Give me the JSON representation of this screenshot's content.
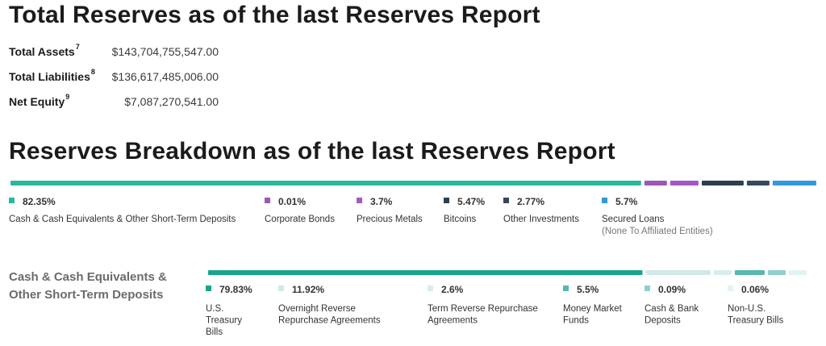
{
  "section1": {
    "title": "Total Reserves as of the last Reserves Report",
    "rows": [
      {
        "label": "Total Assets",
        "note": "7",
        "value": "$143,704,755,547.00"
      },
      {
        "label": "Total Liabilities",
        "note": "8",
        "value": "$136,617,485,006.00"
      },
      {
        "label": "Net Equity",
        "note": "9",
        "value": "$7,087,270,541.00"
      }
    ]
  },
  "section2": {
    "title": "Reserves Breakdown as of the last Reserves Report",
    "sub_title": "Cash & Cash Equivalents & Other Short-Term Deposits"
  },
  "chart_data": [
    {
      "type": "bar",
      "orientation": "stacked-horizontal",
      "title": "",
      "categories": [
        "Cash & Cash Equivalents & Other Short-Term Deposits",
        "Corporate Bonds",
        "Precious Metals",
        "Bitcoins",
        "Other Investments",
        "Secured Loans"
      ],
      "labels": [
        "82.35%",
        "0.01%",
        "3.7%",
        "5.47%",
        "2.77%",
        "5.7%"
      ],
      "values": [
        82.35,
        0.01,
        3.7,
        5.47,
        2.77,
        5.7
      ],
      "notes": [
        "",
        "",
        "",
        "",
        "",
        "(None To Affiliated Entities)"
      ],
      "colors": [
        "#2bb89a",
        "#9b59b6",
        "#a259c6",
        "#2c3e50",
        "#34495e",
        "#3498db"
      ]
    },
    {
      "type": "bar",
      "orientation": "stacked-horizontal",
      "title": "",
      "categories": [
        "U.S. Treasury Bills",
        "Overnight Reverse Repurchase Agreements",
        "Term Reverse Repurchase Agreements",
        "Money Market Funds",
        "Cash & Bank Deposits",
        "Non-U.S. Treasury Bills"
      ],
      "labels": [
        "79.83%",
        "11.92%",
        "2.6%",
        "5.5%",
        "0.09%",
        "0.06%"
      ],
      "values": [
        79.83,
        11.92,
        2.6,
        5.5,
        0.09,
        0.06
      ],
      "colors": [
        "#17a58c",
        "#cfe9e6",
        "#d7eeec",
        "#58b7b0",
        "#8fd0cb",
        "#e3f3f1"
      ]
    }
  ]
}
